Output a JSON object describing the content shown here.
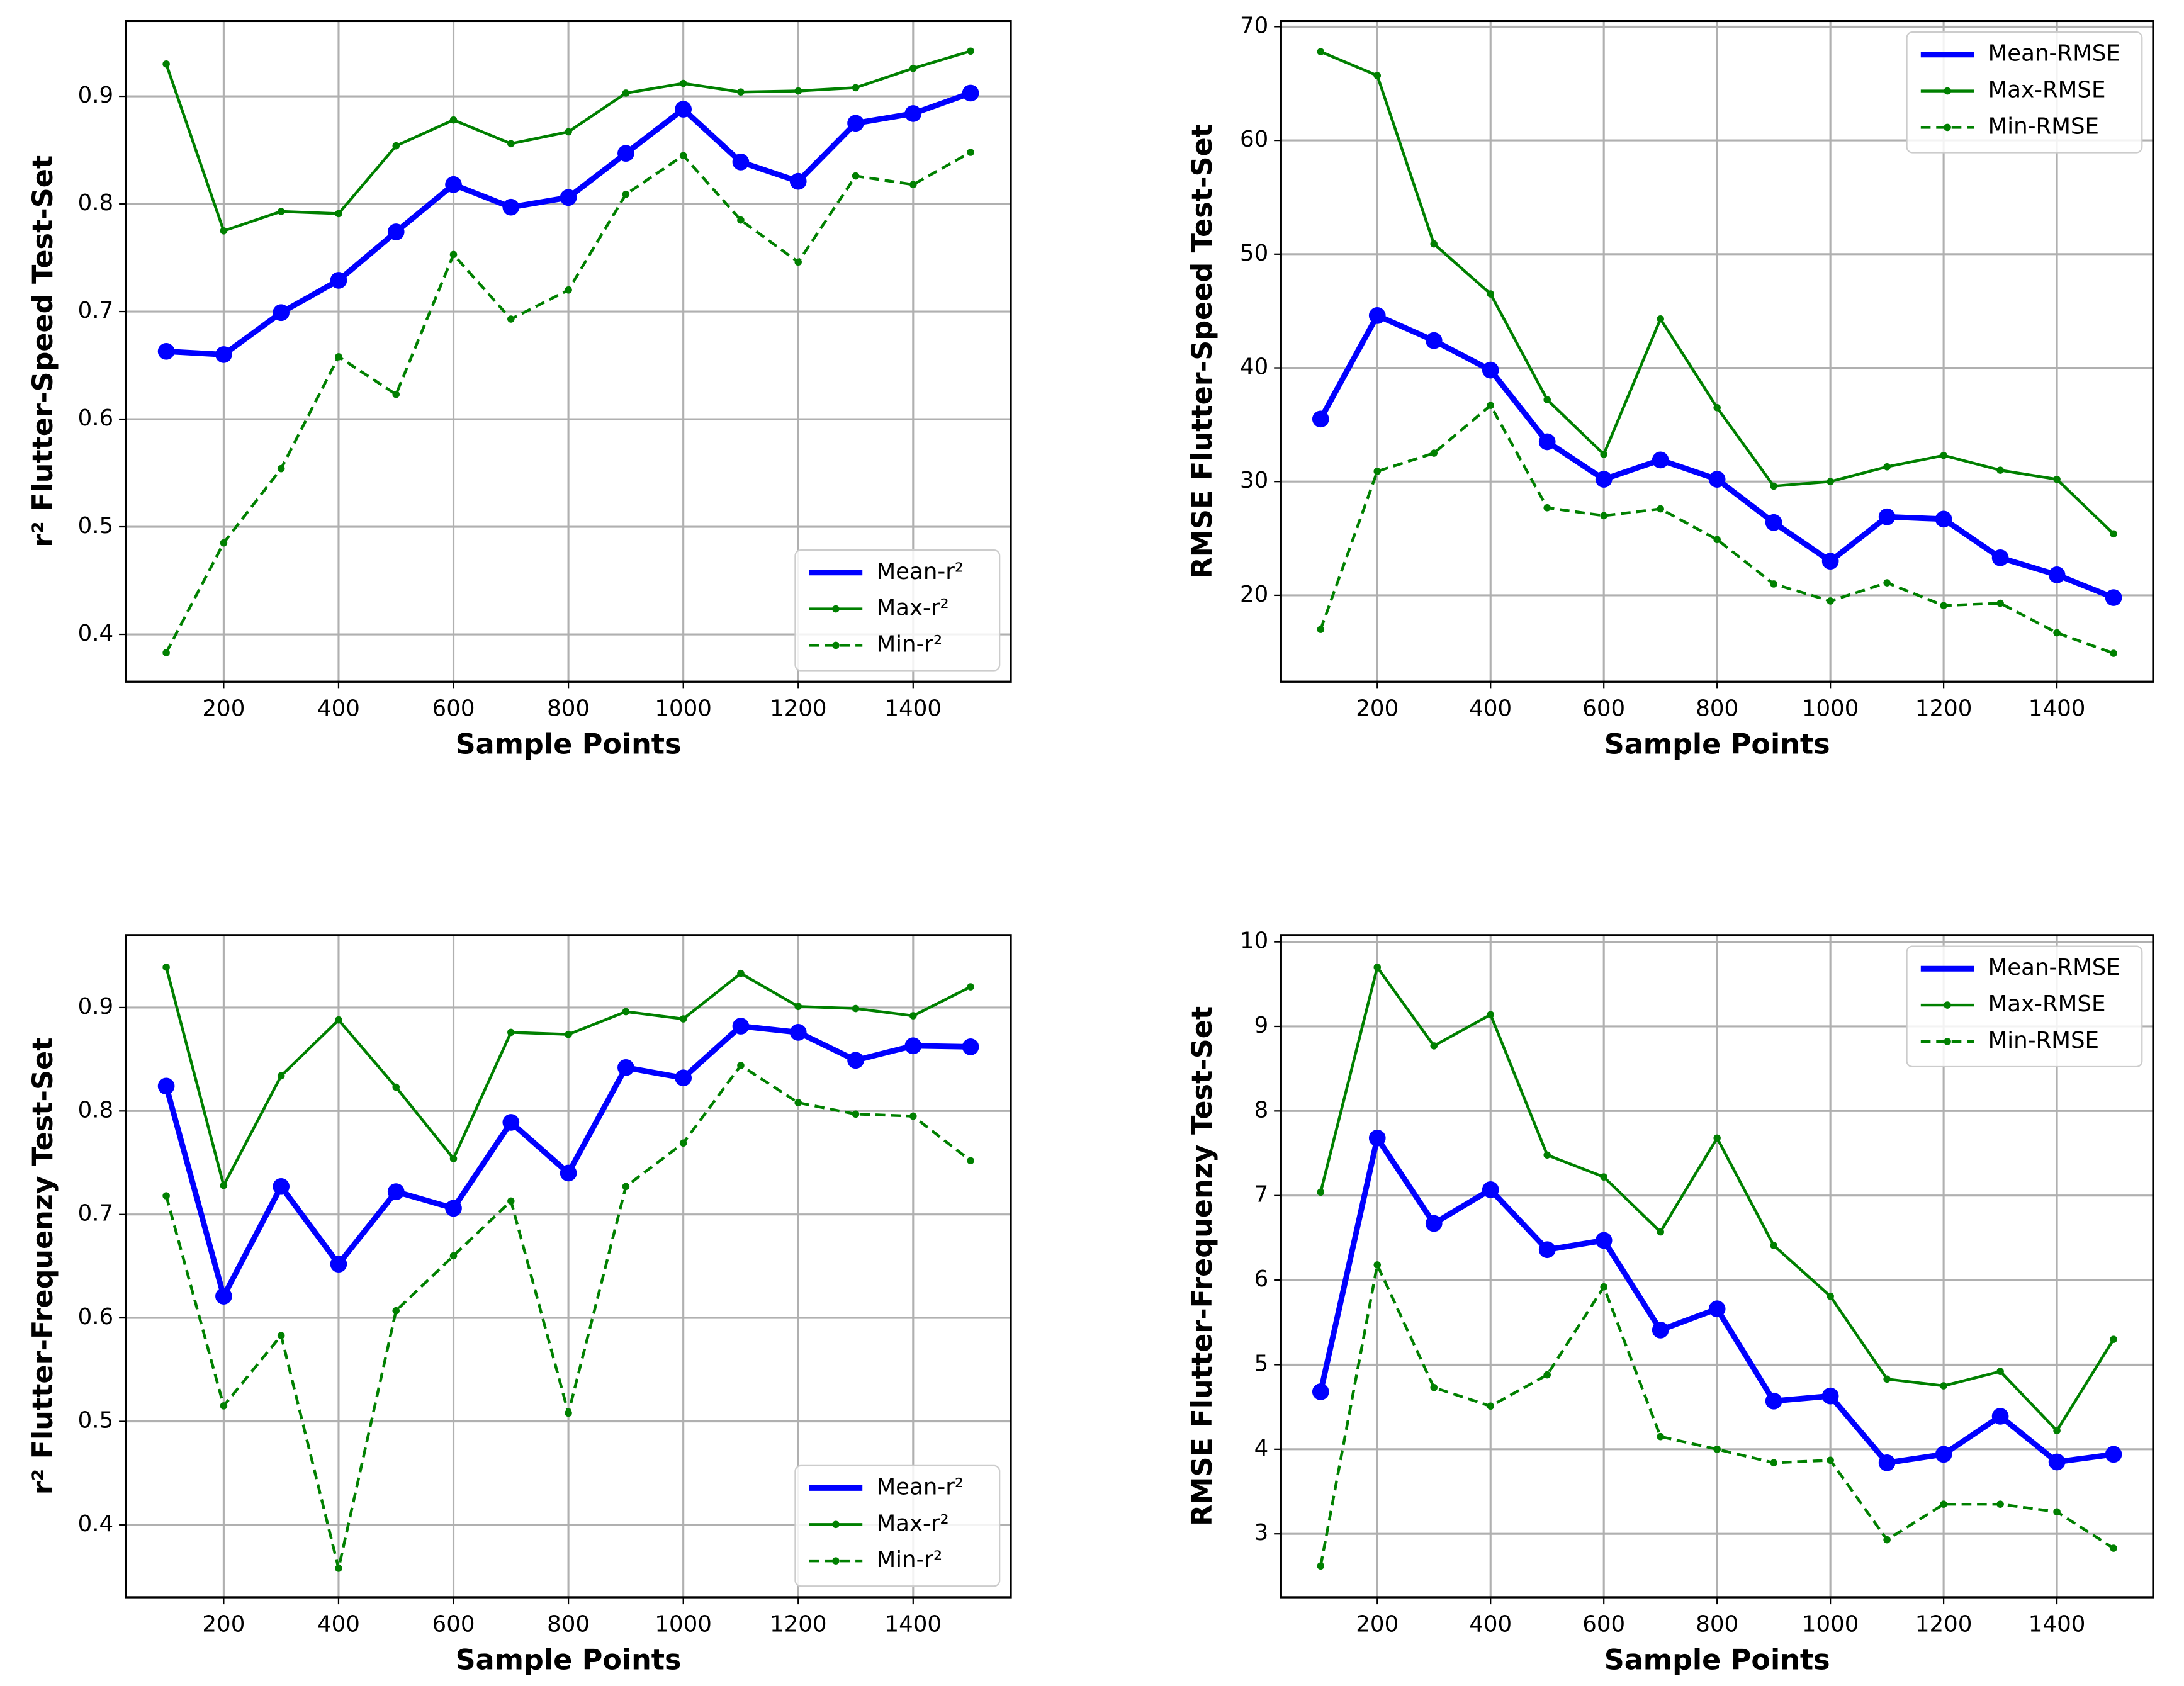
{
  "chart_data": [
    {
      "type": "line",
      "xlabel": "Sample Points",
      "ylabel": "r² Flutter-Speed Test-Set",
      "x": [
        100,
        200,
        300,
        400,
        500,
        600,
        700,
        800,
        900,
        1000,
        1100,
        1200,
        1300,
        1400,
        1500
      ],
      "xlim": [
        30,
        1570
      ],
      "ylim": [
        0.356,
        0.97
      ],
      "xticks": [
        200,
        400,
        600,
        800,
        1000,
        1200,
        1400
      ],
      "yticks": [
        0.4,
        0.5,
        0.6,
        0.7,
        0.8,
        0.9
      ],
      "grid": true,
      "legend": "lower right",
      "series": [
        {
          "name": "Mean-r²",
          "color": "#0000ff",
          "linestyle": "solid",
          "marker": "large",
          "values": [
            0.663,
            0.66,
            0.699,
            0.729,
            0.774,
            0.818,
            0.797,
            0.806,
            0.847,
            0.888,
            0.839,
            0.821,
            0.875,
            0.884,
            0.903
          ]
        },
        {
          "name": "Max-r²",
          "color": "#008000",
          "linestyle": "solid",
          "marker": "small",
          "values": [
            0.93,
            0.775,
            0.793,
            0.791,
            0.854,
            0.878,
            0.856,
            0.867,
            0.903,
            0.912,
            0.904,
            0.905,
            0.908,
            0.926,
            0.942
          ]
        },
        {
          "name": "Min-r²",
          "color": "#008000",
          "linestyle": "dashed",
          "marker": "small",
          "values": [
            0.383,
            0.485,
            0.554,
            0.658,
            0.623,
            0.753,
            0.693,
            0.72,
            0.809,
            0.845,
            0.785,
            0.746,
            0.826,
            0.818,
            0.848
          ]
        }
      ]
    },
    {
      "type": "line",
      "xlabel": "Sample Points",
      "ylabel": "RMSE Flutter-Speed Test-Set",
      "x": [
        100,
        200,
        300,
        400,
        500,
        600,
        700,
        800,
        900,
        1000,
        1100,
        1200,
        1300,
        1400,
        1500
      ],
      "xlim": [
        30,
        1570
      ],
      "ylim": [
        12.4,
        70.5
      ],
      "xticks": [
        200,
        400,
        600,
        800,
        1000,
        1200,
        1400
      ],
      "yticks": [
        20,
        30,
        40,
        50,
        60,
        70
      ],
      "grid": true,
      "legend": "upper right",
      "series": [
        {
          "name": "Mean-RMSE",
          "color": "#0000ff",
          "linestyle": "solid",
          "marker": "large",
          "values": [
            35.5,
            44.6,
            42.4,
            39.8,
            33.5,
            30.2,
            31.9,
            30.2,
            26.4,
            23.0,
            26.9,
            26.7,
            23.3,
            21.8,
            19.8
          ]
        },
        {
          "name": "Max-RMSE",
          "color": "#008000",
          "linestyle": "solid",
          "marker": "small",
          "values": [
            67.8,
            65.7,
            50.9,
            46.5,
            37.2,
            32.4,
            44.3,
            36.5,
            29.6,
            30.0,
            31.3,
            32.3,
            31.0,
            30.2,
            25.4
          ]
        },
        {
          "name": "Min-RMSE",
          "color": "#008000",
          "linestyle": "dashed",
          "marker": "small",
          "values": [
            17.0,
            30.9,
            32.5,
            36.7,
            27.7,
            27.0,
            27.6,
            24.9,
            21.0,
            19.5,
            21.1,
            19.1,
            19.3,
            16.7,
            14.9
          ]
        }
      ]
    },
    {
      "type": "line",
      "xlabel": "Sample Points",
      "ylabel": "r² Flutter-Frequenzy Test-Set",
      "x": [
        100,
        200,
        300,
        400,
        500,
        600,
        700,
        800,
        900,
        1000,
        1100,
        1200,
        1300,
        1400,
        1500
      ],
      "xlim": [
        30,
        1570
      ],
      "ylim": [
        0.33,
        0.97
      ],
      "xticks": [
        200,
        400,
        600,
        800,
        1000,
        1200,
        1400
      ],
      "yticks": [
        0.4,
        0.5,
        0.6,
        0.7,
        0.8,
        0.9
      ],
      "grid": true,
      "legend": "lower right",
      "series": [
        {
          "name": "Mean-r²",
          "color": "#0000ff",
          "linestyle": "solid",
          "marker": "large",
          "values": [
            0.824,
            0.621,
            0.727,
            0.652,
            0.722,
            0.706,
            0.789,
            0.74,
            0.842,
            0.832,
            0.882,
            0.876,
            0.849,
            0.863,
            0.862
          ]
        },
        {
          "name": "Max-r²",
          "color": "#008000",
          "linestyle": "solid",
          "marker": "small",
          "values": [
            0.939,
            0.728,
            0.834,
            0.888,
            0.823,
            0.754,
            0.876,
            0.874,
            0.896,
            0.889,
            0.933,
            0.901,
            0.899,
            0.892,
            0.92
          ]
        },
        {
          "name": "Min-r²",
          "color": "#008000",
          "linestyle": "dashed",
          "marker": "small",
          "values": [
            0.718,
            0.515,
            0.583,
            0.358,
            0.607,
            0.66,
            0.713,
            0.508,
            0.727,
            0.769,
            0.844,
            0.808,
            0.797,
            0.795,
            0.752
          ]
        }
      ]
    },
    {
      "type": "line",
      "xlabel": "Sample Points",
      "ylabel": "RMSE Flutter-Frequenzy Test-Set",
      "x": [
        100,
        200,
        300,
        400,
        500,
        600,
        700,
        800,
        900,
        1000,
        1100,
        1200,
        1300,
        1400,
        1500
      ],
      "xlim": [
        30,
        1570
      ],
      "ylim": [
        2.25,
        10.08
      ],
      "xticks": [
        200,
        400,
        600,
        800,
        1000,
        1200,
        1400
      ],
      "yticks": [
        3,
        4,
        5,
        6,
        7,
        8,
        9,
        10
      ],
      "grid": true,
      "legend": "upper right",
      "series": [
        {
          "name": "Mean-RMSE",
          "color": "#0000ff",
          "linestyle": "solid",
          "marker": "large",
          "values": [
            4.68,
            7.68,
            6.67,
            7.07,
            6.36,
            6.47,
            5.41,
            5.66,
            4.57,
            4.63,
            3.84,
            3.94,
            4.39,
            3.85,
            3.94
          ]
        },
        {
          "name": "Max-RMSE",
          "color": "#008000",
          "linestyle": "solid",
          "marker": "small",
          "values": [
            7.04,
            9.7,
            8.77,
            9.14,
            7.48,
            7.22,
            6.57,
            7.68,
            6.41,
            5.81,
            4.83,
            4.75,
            4.92,
            4.22,
            5.3
          ]
        },
        {
          "name": "Min-RMSE",
          "color": "#008000",
          "linestyle": "dashed",
          "marker": "small",
          "values": [
            2.62,
            6.18,
            4.73,
            4.51,
            4.88,
            5.92,
            4.15,
            4.0,
            3.84,
            3.87,
            2.93,
            3.35,
            3.35,
            3.26,
            2.83
          ]
        }
      ]
    }
  ]
}
